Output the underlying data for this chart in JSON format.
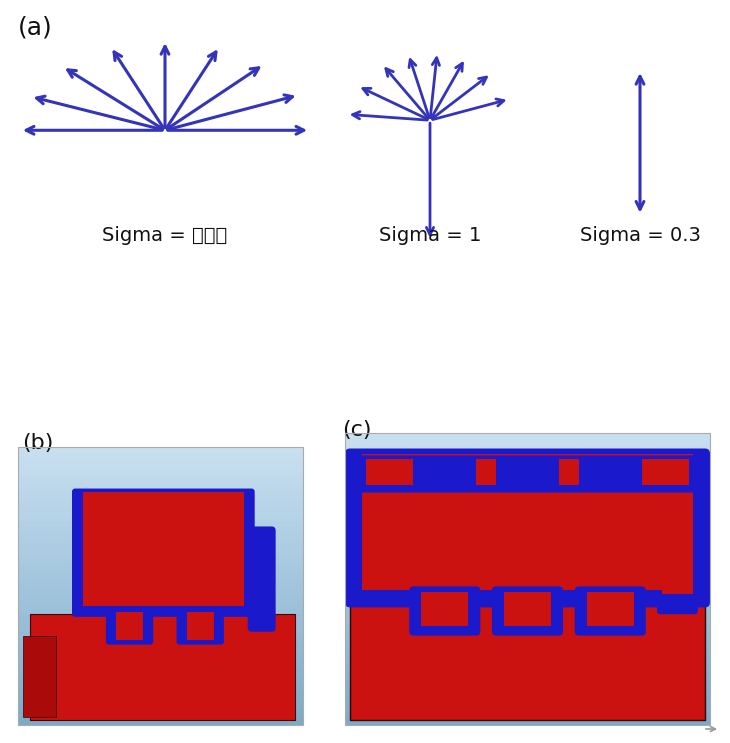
{
  "bg_color": "#ffffff",
  "arrow_color": "#3333bb",
  "text_color": "#111111",
  "label_a": "(a)",
  "label_b": "(b)",
  "label_c": "(c)",
  "sigma_texts": [
    "Sigma = 无穷大",
    "Sigma = 1",
    "Sigma = 0.3"
  ],
  "chip_blue": "#1a1acc",
  "chip_red": "#cc1111",
  "chip_darkred": "#880000",
  "chip_bg_light": "#c8dff0",
  "chip_bg_dark": "#7aaac8",
  "sigma1_angles": [
    180,
    158,
    135,
    112,
    90,
    68,
    47,
    23,
    0
  ],
  "sigma2_angles": [
    175,
    150,
    125,
    105,
    85,
    65,
    43,
    18,
    270
  ],
  "font_size_label": 16,
  "font_size_sigma": 14
}
